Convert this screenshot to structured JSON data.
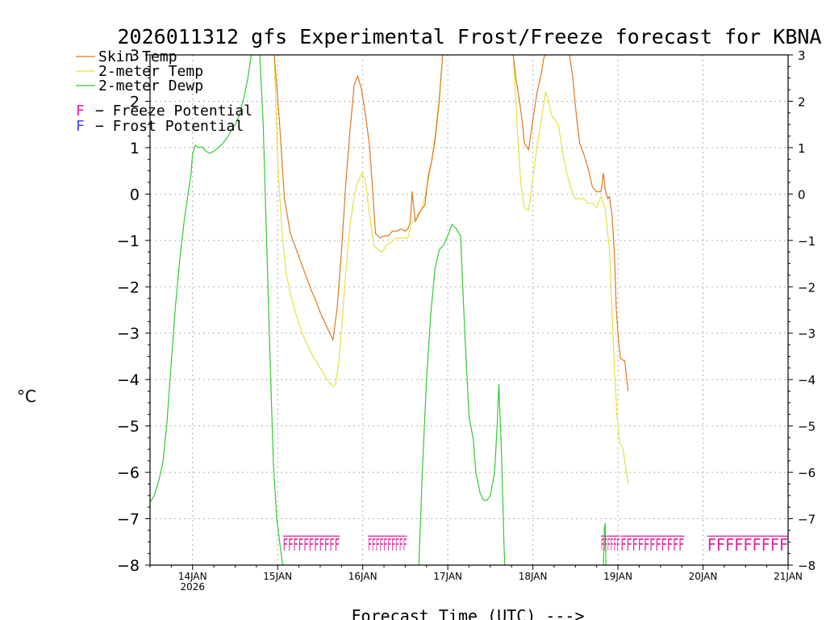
{
  "chart_data": {
    "type": "line",
    "title": "2026011312 gfs Experimental Frost/Freeze forecast for KBNA",
    "xlabel": "Forecast Time (UTC) --->",
    "ylabel": "°C",
    "x_unit": "days since 2026-01-13 12 UTC",
    "xlim": [
      0.0,
      7.5
    ],
    "ylim": [
      -8,
      3
    ],
    "yticks": [
      -8,
      -7,
      -6,
      -5,
      -4,
      -3,
      -2,
      -1,
      0,
      1,
      2,
      3
    ],
    "ytick_labels": [
      "−8",
      "−7",
      "−6",
      "−5",
      "−4",
      "−3",
      "−2",
      "−1",
      "0",
      "1",
      "2",
      "3"
    ],
    "grid": true,
    "xticks": [
      {
        "x": 0.5,
        "label": "14JAN",
        "sublabel": "2026"
      },
      {
        "x": 1.5,
        "label": "15JAN",
        "sublabel": ""
      },
      {
        "x": 2.5,
        "label": "16JAN",
        "sublabel": ""
      },
      {
        "x": 3.5,
        "label": "17JAN",
        "sublabel": ""
      },
      {
        "x": 4.5,
        "label": "18JAN",
        "sublabel": ""
      },
      {
        "x": 5.5,
        "label": "19JAN",
        "sublabel": ""
      },
      {
        "x": 6.5,
        "label": "20JAN",
        "sublabel": ""
      },
      {
        "x": 7.5,
        "label": "21JAN",
        "sublabel": ""
      }
    ],
    "legend": {
      "placement": "top-left",
      "series_entries": [
        "Skin Temp",
        "2-meter Temp",
        "2-meter Dewp"
      ],
      "symbol_entries": [
        {
          "symbol": "F",
          "text": "− Freeze Potential",
          "color": "#e0209a"
        },
        {
          "symbol": "F",
          "text": "− Frost Potential",
          "color": "#4444ee"
        }
      ]
    },
    "series": [
      {
        "name": "Skin Temp",
        "color": "#e07820",
        "points": [
          [
            1.46,
            3.0
          ],
          [
            1.52,
            1.6
          ],
          [
            1.58,
            -0.1
          ],
          [
            1.65,
            -0.85
          ],
          [
            1.7,
            -1.1
          ],
          [
            1.75,
            -1.35
          ],
          [
            1.8,
            -1.6
          ],
          [
            1.85,
            -1.85
          ],
          [
            1.9,
            -2.1
          ],
          [
            1.95,
            -2.3
          ],
          [
            2.0,
            -2.55
          ],
          [
            2.05,
            -2.75
          ],
          [
            2.1,
            -2.95
          ],
          [
            2.15,
            -3.15
          ],
          [
            2.2,
            -2.45
          ],
          [
            2.25,
            -1.25
          ],
          [
            2.3,
            0.2
          ],
          [
            2.35,
            1.35
          ],
          [
            2.4,
            2.35
          ],
          [
            2.44,
            2.55
          ],
          [
            2.48,
            2.3
          ],
          [
            2.53,
            1.75
          ],
          [
            2.58,
            1.05
          ],
          [
            2.62,
            0.0
          ],
          [
            2.65,
            -0.85
          ],
          [
            2.7,
            -0.95
          ],
          [
            2.75,
            -0.9
          ],
          [
            2.8,
            -0.9
          ],
          [
            2.85,
            -0.8
          ],
          [
            2.9,
            -0.8
          ],
          [
            2.95,
            -0.75
          ],
          [
            3.0,
            -0.8
          ],
          [
            3.03,
            -0.75
          ],
          [
            3.06,
            -0.6
          ],
          [
            3.08,
            0.05
          ],
          [
            3.1,
            -0.3
          ],
          [
            3.12,
            -0.6
          ],
          [
            3.15,
            -0.45
          ],
          [
            3.2,
            -0.3
          ],
          [
            3.23,
            -0.25
          ],
          [
            3.27,
            0.4
          ],
          [
            3.31,
            0.7
          ],
          [
            3.35,
            1.2
          ],
          [
            3.4,
            2.05
          ],
          [
            3.44,
            3.0
          ]
        ]
      },
      {
        "name": "Skin Temp",
        "color": "#e07820",
        "points": [
          [
            4.27,
            3.0
          ],
          [
            4.3,
            2.5
          ],
          [
            4.34,
            2.05
          ],
          [
            4.38,
            1.5
          ],
          [
            4.4,
            1.1
          ],
          [
            4.45,
            0.95
          ],
          [
            4.5,
            1.6
          ],
          [
            4.55,
            2.2
          ],
          [
            4.6,
            2.6
          ],
          [
            4.63,
            2.95
          ],
          [
            4.65,
            3.0
          ]
        ]
      },
      {
        "name": "Skin Temp",
        "color": "#e07820",
        "points": [
          [
            4.93,
            3.0
          ],
          [
            4.97,
            2.5
          ],
          [
            5.0,
            1.9
          ],
          [
            5.03,
            1.4
          ],
          [
            5.05,
            1.1
          ],
          [
            5.1,
            0.85
          ],
          [
            5.15,
            0.55
          ],
          [
            5.2,
            0.15
          ],
          [
            5.25,
            0.05
          ],
          [
            5.3,
            0.05
          ],
          [
            5.33,
            0.45
          ],
          [
            5.35,
            0.1
          ],
          [
            5.38,
            -0.1
          ],
          [
            5.4,
            -0.05
          ],
          [
            5.43,
            -0.45
          ],
          [
            5.46,
            -1.3
          ],
          [
            5.48,
            -2.5
          ],
          [
            5.5,
            -3.0
          ],
          [
            5.53,
            -3.55
          ],
          [
            5.58,
            -3.6
          ],
          [
            5.62,
            -4.25
          ]
        ]
      },
      {
        "name": "2-meter Temp",
        "color": "#e6e040",
        "points": [
          [
            1.46,
            3.0
          ],
          [
            1.5,
            0.7
          ],
          [
            1.55,
            -0.8
          ],
          [
            1.6,
            -1.7
          ],
          [
            1.65,
            -2.15
          ],
          [
            1.7,
            -2.5
          ],
          [
            1.75,
            -2.8
          ],
          [
            1.8,
            -3.05
          ],
          [
            1.85,
            -3.25
          ],
          [
            1.9,
            -3.45
          ],
          [
            1.95,
            -3.6
          ],
          [
            2.0,
            -3.75
          ],
          [
            2.05,
            -3.9
          ],
          [
            2.1,
            -4.05
          ],
          [
            2.15,
            -4.15
          ],
          [
            2.18,
            -4.1
          ],
          [
            2.22,
            -3.6
          ],
          [
            2.26,
            -2.7
          ],
          [
            2.3,
            -1.7
          ],
          [
            2.35,
            -0.7
          ],
          [
            2.4,
            -0.05
          ],
          [
            2.44,
            0.25
          ],
          [
            2.49,
            0.45
          ],
          [
            2.53,
            0.3
          ],
          [
            2.58,
            -0.45
          ],
          [
            2.63,
            -1.1
          ],
          [
            2.68,
            -1.2
          ],
          [
            2.73,
            -1.25
          ],
          [
            2.78,
            -1.1
          ],
          [
            2.83,
            -1.05
          ],
          [
            2.88,
            -0.95
          ],
          [
            2.93,
            -0.95
          ],
          [
            2.98,
            -0.95
          ],
          [
            3.03,
            -0.95
          ],
          [
            3.08,
            -0.6
          ],
          [
            3.12,
            -0.55
          ],
          [
            3.15,
            -0.5
          ],
          [
            3.2,
            -0.3
          ],
          [
            3.25,
            0.1
          ],
          [
            3.3,
            0.6
          ],
          [
            3.35,
            1.1
          ],
          [
            3.4,
            1.95
          ],
          [
            3.44,
            3.0
          ]
        ]
      },
      {
        "name": "2-meter Temp",
        "color": "#e6e040",
        "points": [
          [
            4.27,
            3.0
          ],
          [
            4.3,
            2.0
          ],
          [
            4.33,
            1.0
          ],
          [
            4.36,
            0.2
          ],
          [
            4.4,
            -0.3
          ],
          [
            4.45,
            -0.35
          ],
          [
            4.5,
            0.35
          ],
          [
            4.55,
            1.05
          ],
          [
            4.6,
            1.6
          ],
          [
            4.65,
            2.2
          ],
          [
            4.68,
            2.05
          ],
          [
            4.72,
            1.7
          ],
          [
            4.76,
            1.6
          ],
          [
            4.8,
            1.5
          ],
          [
            4.85,
            0.9
          ],
          [
            4.9,
            0.45
          ],
          [
            4.95,
            0.1
          ],
          [
            5.0,
            -0.1
          ],
          [
            5.05,
            -0.1
          ],
          [
            5.1,
            -0.1
          ],
          [
            5.15,
            -0.2
          ],
          [
            5.2,
            -0.2
          ],
          [
            5.25,
            -0.3
          ],
          [
            5.3,
            -0.05
          ],
          [
            5.35,
            -0.3
          ],
          [
            5.4,
            -1.2
          ],
          [
            5.43,
            -2.5
          ],
          [
            5.46,
            -3.8
          ],
          [
            5.49,
            -4.8
          ],
          [
            5.52,
            -5.35
          ],
          [
            5.56,
            -5.5
          ],
          [
            5.62,
            -6.25
          ]
        ]
      },
      {
        "name": "2-meter Dewp",
        "color": "#30cc30",
        "points": [
          [
            0.0,
            -6.65
          ],
          [
            0.05,
            -6.5
          ],
          [
            0.1,
            -6.2
          ],
          [
            0.15,
            -5.8
          ],
          [
            0.2,
            -4.9
          ],
          [
            0.25,
            -3.6
          ],
          [
            0.3,
            -2.4
          ],
          [
            0.35,
            -1.4
          ],
          [
            0.4,
            -0.6
          ],
          [
            0.45,
            0.05
          ],
          [
            0.48,
            0.4
          ],
          [
            0.5,
            0.85
          ],
          [
            0.53,
            1.05
          ],
          [
            0.57,
            1.0
          ],
          [
            0.61,
            1.02
          ],
          [
            0.66,
            0.92
          ],
          [
            0.7,
            0.88
          ],
          [
            0.75,
            0.92
          ],
          [
            0.8,
            1.0
          ],
          [
            0.85,
            1.08
          ],
          [
            0.9,
            1.2
          ],
          [
            0.95,
            1.35
          ],
          [
            1.0,
            1.5
          ],
          [
            1.05,
            1.7
          ],
          [
            1.1,
            2.05
          ],
          [
            1.15,
            2.5
          ],
          [
            1.19,
            3.0
          ]
        ]
      },
      {
        "name": "2-meter Dewp",
        "color": "#30cc30",
        "points": [
          [
            1.29,
            3.0
          ],
          [
            1.33,
            1.5
          ],
          [
            1.37,
            -1.0
          ],
          [
            1.41,
            -3.5
          ],
          [
            1.45,
            -5.8
          ],
          [
            1.49,
            -7.0
          ],
          [
            1.53,
            -7.6
          ],
          [
            1.56,
            -8.0
          ]
        ]
      },
      {
        "name": "2-meter Dewp",
        "color": "#30cc30",
        "points": [
          [
            3.16,
            -8.0
          ],
          [
            3.2,
            -6.0
          ],
          [
            3.25,
            -4.0
          ],
          [
            3.3,
            -2.6
          ],
          [
            3.35,
            -1.6
          ],
          [
            3.4,
            -1.2
          ],
          [
            3.45,
            -1.1
          ],
          [
            3.5,
            -0.9
          ],
          [
            3.55,
            -0.65
          ],
          [
            3.6,
            -0.75
          ],
          [
            3.65,
            -0.9
          ],
          [
            3.7,
            -3.0
          ],
          [
            3.75,
            -4.8
          ],
          [
            3.8,
            -5.3
          ],
          [
            3.83,
            -6.0
          ],
          [
            3.88,
            -6.45
          ],
          [
            3.92,
            -6.6
          ],
          [
            3.96,
            -6.6
          ],
          [
            4.0,
            -6.5
          ],
          [
            4.05,
            -6.0
          ],
          [
            4.08,
            -5.0
          ],
          [
            4.1,
            -4.1
          ],
          [
            4.13,
            -5.5
          ],
          [
            4.16,
            -7.5
          ],
          [
            4.17,
            -8.0
          ]
        ]
      },
      {
        "name": "2-meter Dewp",
        "color": "#30cc30",
        "points": [
          [
            5.33,
            -8.0
          ],
          [
            5.34,
            -7.2
          ],
          [
            5.35,
            -7.1
          ],
          [
            5.36,
            -8.0
          ]
        ]
      }
    ],
    "freeze_markers": [
      {
        "from": 1.56,
        "to": 2.23,
        "y": -7.55,
        "count": 11,
        "text": "FFFFFFFFFFF",
        "color": "#e0209a"
      },
      {
        "from": 2.56,
        "to": 3.02,
        "y": -7.55,
        "count": 10,
        "text": "FFFFFFFFFF",
        "color": "#e0209a"
      },
      {
        "from": 5.3,
        "to": 5.52,
        "y": -7.55,
        "count": 6,
        "text": "FFFFFF",
        "color": "#e0209a"
      },
      {
        "from": 5.53,
        "to": 6.28,
        "y": -7.55,
        "count": 11,
        "text": "FFFFFFFFFFF",
        "color": "#e0209a"
      },
      {
        "from": 6.55,
        "to": 7.5,
        "y": -7.55,
        "count": 9,
        "text": "FFFFFFFFF",
        "color": "#e0209a"
      }
    ]
  }
}
